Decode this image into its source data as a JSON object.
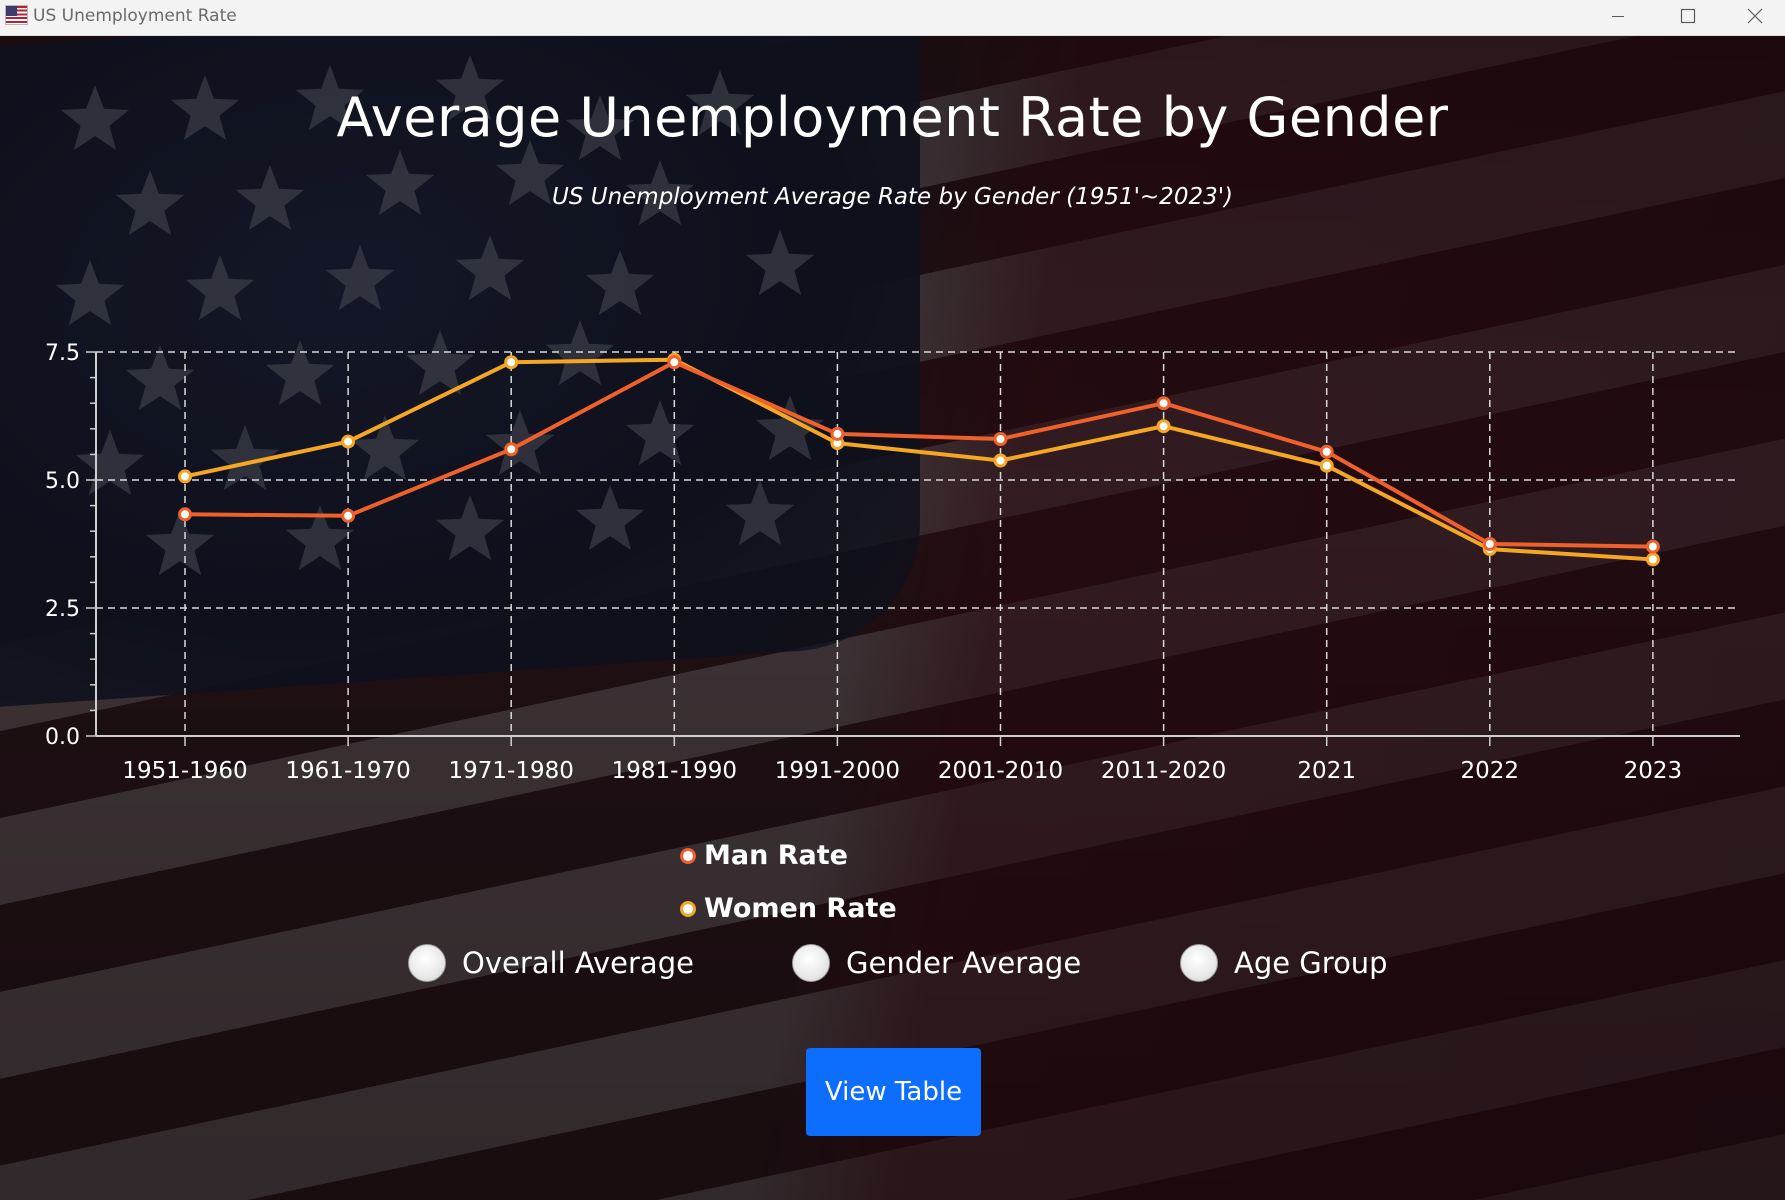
{
  "window": {
    "title": "US Unemployment Rate",
    "controls": [
      "minimize-icon",
      "maximize-icon",
      "close-icon"
    ]
  },
  "chart_data": {
    "type": "line",
    "title": "Average Unemployment Rate by Gender",
    "subtitle": "US Unemployment Average Rate by Gender (1951'~2023')",
    "categories": [
      "1951-1960",
      "1961-1970",
      "1971-1980",
      "1981-1990",
      "1991-2000",
      "2001-2010",
      "2011-2020",
      "2021",
      "2022",
      "2023"
    ],
    "series": [
      {
        "name": "Man Rate",
        "color": "#f0602a",
        "values": [
          4.33,
          4.3,
          5.6,
          7.3,
          5.9,
          5.8,
          6.5,
          5.55,
          3.75,
          3.7
        ]
      },
      {
        "name": "Women Rate",
        "color": "#f5a623",
        "values": [
          5.07,
          5.75,
          7.3,
          7.35,
          5.72,
          5.38,
          6.05,
          5.28,
          3.65,
          3.45
        ]
      }
    ],
    "yticks": [
      "0.0",
      "2.5",
      "5.0",
      "7.5"
    ],
    "ylim": [
      0,
      7.5
    ],
    "grid": true,
    "legend_position": "bottom"
  },
  "options": {
    "radio_overall": "Overall Average",
    "radio_gender": "Gender Average",
    "radio_age": "Age Group"
  },
  "actions": {
    "view_table": "View Table"
  },
  "colors": {
    "accent": "#0d6efd",
    "man": "#f0602a",
    "women": "#f5a623"
  }
}
